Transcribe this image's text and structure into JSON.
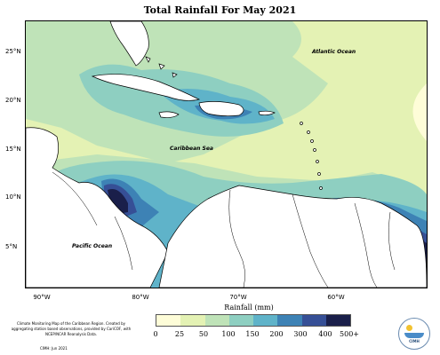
{
  "title": "Total Rainfall For May 2021",
  "map": {
    "latitude_labels": [
      "25°N",
      "20°N",
      "15°N",
      "10°N",
      "5°N"
    ],
    "longitude_labels": [
      "90°W",
      "80°W",
      "70°W",
      "60°W"
    ],
    "ocean_labels": {
      "atlantic": "Atlantic Ocean",
      "caribbean": "Caribbean Sea",
      "pacific": "Pacific Ocean"
    }
  },
  "legend": {
    "title": "Rainfall (mm)",
    "ticks": [
      "0",
      "25",
      "50",
      "100",
      "150",
      "200",
      "300",
      "400",
      "500+"
    ],
    "colors": [
      "#fefdd8",
      "#e4f2b4",
      "#bfe3b8",
      "#8ecfc1",
      "#5fb3c9",
      "#3d82b5",
      "#364f96",
      "#2f2d75",
      "#1a1f4a"
    ]
  },
  "credit": {
    "text": "Climate Monitoring Map of the Caribbean Region. Created by aggregating station based observations, provided by CariCOF, with NCEP/NCAR Reanalysis Data.",
    "date": "CIMH: Jun 2021"
  },
  "logo": {
    "text": "CIMH"
  }
}
